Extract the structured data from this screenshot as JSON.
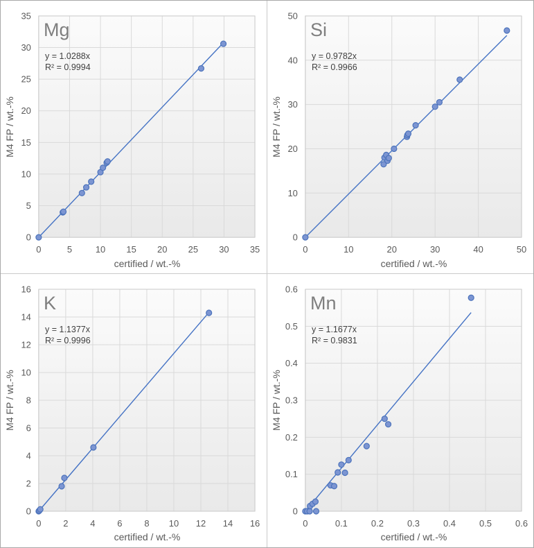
{
  "page": {
    "background": "#ffffff",
    "outer_border_color": "#a8a8a8",
    "panel_separator_color": "#c9c9c9"
  },
  "colors": {
    "accent_line": "#4472c4",
    "marker_fill": "#7c95d2",
    "marker_stroke": "#4c73bb",
    "gridline": "#d9d9d9",
    "plot_border": "#c9c9c9",
    "axis_text": "#595959",
    "panel_title_text": "#7f7f7f",
    "equation_text": "#404040",
    "plot_fill_top": "#fbfbfb",
    "plot_fill_bottom": "#e9e9e9"
  },
  "chart_data": [
    {
      "type": "scatter",
      "title": "Mg",
      "equation_label": "y = 1.0288x",
      "r2_label": "R² = 0.9994",
      "slope": 1.0288,
      "r_squared": 0.9994,
      "xlabel": "certified / wt.-%",
      "ylabel": "M4 FP / wt.-%",
      "xlim": [
        0,
        35
      ],
      "ylim": [
        0,
        35
      ],
      "tick_values": [
        0,
        5,
        10,
        15,
        20,
        25,
        30,
        35
      ],
      "tick_labels": [
        "0",
        "5",
        "10",
        "15",
        "20",
        "25",
        "30",
        "35"
      ],
      "grid": true,
      "legend": "none",
      "trendline": {
        "x_start": 0,
        "x_end": 29.9
      },
      "points": [
        [
          0,
          0
        ],
        [
          3.9,
          3.95
        ],
        [
          4.0,
          4.05
        ],
        [
          7.0,
          7.0
        ],
        [
          7.7,
          7.9
        ],
        [
          8.5,
          8.8
        ],
        [
          10.0,
          10.3
        ],
        [
          10.4,
          11.0
        ],
        [
          11.0,
          11.8
        ],
        [
          11.15,
          12.0
        ],
        [
          26.3,
          26.7
        ],
        [
          29.9,
          30.6
        ]
      ]
    },
    {
      "type": "scatter",
      "title": "Si",
      "equation_label": "y = 0.9782x",
      "r2_label": "R² = 0.9966",
      "slope": 0.9782,
      "r_squared": 0.9966,
      "xlabel": "certified / wt.-%",
      "ylabel": "M4 FP / wt.-%",
      "xlim": [
        0,
        50
      ],
      "ylim": [
        0,
        50
      ],
      "tick_values": [
        0,
        10,
        20,
        30,
        40,
        50
      ],
      "tick_labels": [
        "0",
        "10",
        "20",
        "30",
        "40",
        "50"
      ],
      "grid": true,
      "legend": "none",
      "trendline": {
        "x_start": 0,
        "x_end": 46.6
      },
      "points": [
        [
          0,
          0
        ],
        [
          18.1,
          16.5
        ],
        [
          18.3,
          18.0
        ],
        [
          18.7,
          18.6
        ],
        [
          19.0,
          17.3
        ],
        [
          19.3,
          17.9
        ],
        [
          20.5,
          20.0
        ],
        [
          23.5,
          22.7
        ],
        [
          23.6,
          23.1
        ],
        [
          23.8,
          23.4
        ],
        [
          25.5,
          25.3
        ],
        [
          30.0,
          29.5
        ],
        [
          31.0,
          30.5
        ],
        [
          35.7,
          35.6
        ],
        [
          46.6,
          46.7
        ]
      ]
    },
    {
      "type": "scatter",
      "title": "K",
      "equation_label": "y = 1.1377x",
      "r2_label": "R² = 0.9996",
      "slope": 1.1377,
      "r_squared": 0.9996,
      "xlabel": "certified / wt.-%",
      "ylabel": "M4 FP / wt.-%",
      "xlim": [
        0,
        16
      ],
      "ylim": [
        0,
        16
      ],
      "tick_values": [
        0,
        2,
        4,
        6,
        8,
        10,
        12,
        14,
        16
      ],
      "tick_labels": [
        "0",
        "2",
        "4",
        "6",
        "8",
        "10",
        "12",
        "14",
        "16"
      ],
      "grid": true,
      "legend": "none",
      "trendline": {
        "x_start": 0,
        "x_end": 12.6
      },
      "points": [
        [
          0,
          0
        ],
        [
          0.05,
          0.05
        ],
        [
          0.12,
          0.14
        ],
        [
          1.7,
          1.8
        ],
        [
          1.9,
          2.4
        ],
        [
          4.05,
          4.6
        ],
        [
          12.6,
          14.3
        ]
      ]
    },
    {
      "type": "scatter",
      "title": "Mn",
      "equation_label": "y = 1.1677x",
      "r2_label": "R² = 0.9831",
      "slope": 1.1677,
      "r_squared": 0.9831,
      "xlabel": "certified / wt.-%",
      "ylabel": "M4 FP / wt.-%",
      "xlim": [
        0,
        0.6
      ],
      "ylim": [
        0,
        0.6
      ],
      "tick_values": [
        0,
        0.1,
        0.2,
        0.3,
        0.4,
        0.5,
        0.6
      ],
      "tick_labels": [
        "0",
        "0.1",
        "0.2",
        "0.3",
        "0.4",
        "0.5",
        "0.6"
      ],
      "grid": true,
      "legend": "none",
      "trendline": {
        "x_start": 0,
        "x_end": 0.46
      },
      "points": [
        [
          0,
          0
        ],
        [
          0.005,
          0
        ],
        [
          0.012,
          0
        ],
        [
          0.013,
          0.014
        ],
        [
          0.02,
          0.02
        ],
        [
          0.028,
          0.026
        ],
        [
          0.03,
          0
        ],
        [
          0.07,
          0.07
        ],
        [
          0.08,
          0.068
        ],
        [
          0.09,
          0.105
        ],
        [
          0.1,
          0.126
        ],
        [
          0.11,
          0.104
        ],
        [
          0.12,
          0.138
        ],
        [
          0.17,
          0.176
        ],
        [
          0.22,
          0.25
        ],
        [
          0.23,
          0.235
        ],
        [
          0.46,
          0.577
        ]
      ]
    }
  ]
}
